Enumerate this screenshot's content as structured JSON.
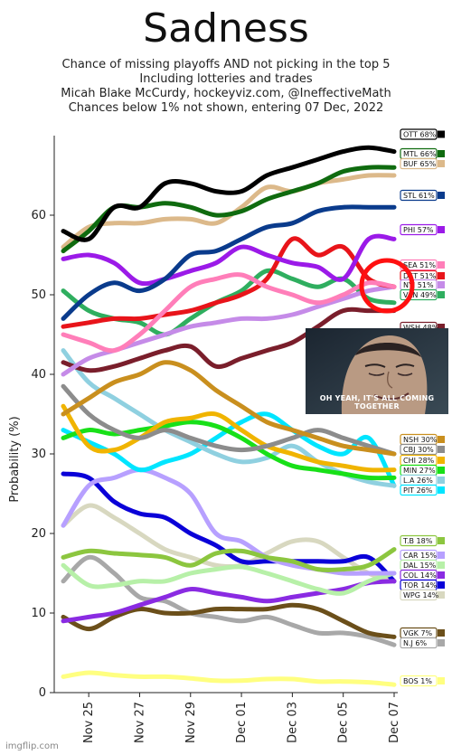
{
  "chart_data": {
    "type": "line",
    "title": "Sadness",
    "subtitle_lines": [
      "Chance of missing playoffs AND not picking in the top 5",
      "Including lotteries and trades",
      "Micah Blake McCurdy, hockeyviz.com, @IneffectiveMath",
      "Chances below 1% not shown, entering 07 Dec, 2022"
    ],
    "ylabel": "Probability (%)",
    "xlabel": "",
    "ylim": [
      0,
      70
    ],
    "yticks": [
      0,
      10,
      20,
      30,
      40,
      50,
      60
    ],
    "xticks": [
      "Nov 25",
      "Nov 27",
      "Nov 29",
      "Dec 01",
      "Dec 03",
      "Dec 05",
      "Dec 07"
    ],
    "grid": false,
    "series": [
      {
        "name": "OTT",
        "label": "OTT 68%",
        "color": "#000000",
        "values": [
          58,
          57,
          61,
          61,
          64,
          64,
          63,
          63,
          65,
          66,
          67,
          68,
          68.5,
          68
        ]
      },
      {
        "name": "MTL",
        "label": "MTL 66%",
        "color": "#0f6b0f",
        "values": [
          55.5,
          58,
          61,
          61,
          61.5,
          61,
          60,
          60.5,
          62,
          63,
          64,
          65.5,
          66,
          66
        ]
      },
      {
        "name": "BUF",
        "label": "BUF 65%",
        "color": "#dcb98a",
        "values": [
          56,
          58.5,
          59,
          59,
          59.5,
          59.5,
          59,
          61,
          63.5,
          63,
          64,
          64.5,
          65,
          65
        ]
      },
      {
        "name": "STL",
        "label": "STL 61%",
        "color": "#0a3b8c",
        "values": [
          47,
          50,
          51.5,
          50.5,
          52,
          55,
          55.5,
          57,
          58.5,
          59,
          60.5,
          61,
          61,
          61
        ]
      },
      {
        "name": "PHI",
        "label": "PHI 57%",
        "color": "#9b1ae8",
        "values": [
          54.5,
          55,
          54,
          51.5,
          52,
          53,
          54,
          56,
          55,
          54,
          53.5,
          52,
          57,
          57
        ]
      },
      {
        "name": "SEA",
        "label": "SEA 51%",
        "color": "#ff7eb9",
        "values": [
          45,
          44,
          43,
          45,
          48,
          51,
          52,
          52.5,
          51,
          50,
          49,
          50,
          51.5,
          51
        ]
      },
      {
        "name": "DET",
        "label": "DET 51%",
        "color": "#e8141a",
        "values": [
          46,
          46.5,
          47,
          47,
          47.5,
          48,
          49,
          50,
          52,
          57,
          55,
          56,
          52,
          51
        ]
      },
      {
        "name": "NYI",
        "label": "NYI 51%",
        "color": "#c58be8",
        "values": [
          40,
          42,
          43,
          44,
          45,
          46,
          46.5,
          47,
          47,
          47.5,
          48.5,
          49.5,
          50.5,
          51
        ]
      },
      {
        "name": "VAN",
        "label": "VAN 49%",
        "color": "#2fae5f",
        "values": [
          50.5,
          48,
          47,
          46.5,
          45,
          47,
          49,
          50.5,
          53,
          52,
          51,
          52,
          49.5,
          49
        ]
      },
      {
        "name": "WSH",
        "label": "WSH 48%",
        "color": "#7a1e2b",
        "values": [
          41.5,
          40.5,
          41,
          42,
          43,
          43.5,
          41,
          42,
          43,
          44,
          46,
          48,
          48,
          48
        ]
      },
      {
        "name": "NSH",
        "label": "NSH 30%",
        "color": "#c98f1e",
        "values": [
          35,
          37,
          39,
          40,
          41.5,
          40.5,
          38,
          36,
          34,
          33,
          32,
          31,
          30.5,
          30
        ]
      },
      {
        "name": "CBJ",
        "label": "CBJ 30%",
        "color": "#8c8c8c",
        "values": [
          38.5,
          35,
          33,
          32,
          33,
          32,
          31,
          30.5,
          31,
          32,
          33,
          32,
          31,
          30
        ]
      },
      {
        "name": "CHI",
        "label": "CHI 28%",
        "color": "#f0b400",
        "values": [
          36,
          31,
          30.5,
          32,
          34,
          34.5,
          35,
          33,
          31,
          30,
          29,
          28.5,
          28,
          28
        ]
      },
      {
        "name": "MIN",
        "label": "MIN 27%",
        "color": "#18e018",
        "values": [
          32,
          33,
          32.5,
          33,
          33.5,
          34,
          33.5,
          32,
          30,
          28.5,
          28,
          27.5,
          27,
          27
        ]
      },
      {
        "name": "LA",
        "label": "L.A 26%",
        "color": "#8fd0e0",
        "values": [
          43,
          39,
          37,
          35,
          33,
          31.5,
          30,
          29,
          29.5,
          31,
          29,
          27.5,
          26.5,
          26
        ]
      },
      {
        "name": "PIT",
        "label": "PIT 26%",
        "color": "#00e5ff",
        "values": [
          33,
          31.5,
          30,
          28,
          29,
          30,
          32,
          34,
          35,
          33,
          31,
          30,
          32,
          26
        ]
      },
      {
        "name": "TB",
        "label": "T.B 18%",
        "color": "#8cc63f",
        "values": [
          17,
          17.8,
          17.5,
          17.3,
          17,
          16,
          17.5,
          17.8,
          17,
          16.5,
          15.5,
          15.5,
          16,
          18
        ]
      },
      {
        "name": "CAR",
        "label": "CAR 15%",
        "color": "#b7a0ff",
        "values": [
          21,
          26,
          27,
          28,
          27,
          25,
          20,
          19,
          17,
          16,
          15.5,
          15,
          15,
          15
        ]
      },
      {
        "name": "DAL",
        "label": "DAL 15%",
        "color": "#b7f0a8",
        "values": [
          16,
          13.5,
          13.5,
          14,
          14,
          15,
          15.5,
          15.8,
          15,
          14,
          13,
          12.5,
          14,
          15
        ]
      },
      {
        "name": "COL",
        "label": "COL 14%",
        "color": "#8a2be2",
        "values": [
          9,
          9.5,
          10,
          11,
          12,
          13,
          12.5,
          12,
          11.5,
          12,
          12.5,
          13,
          13.8,
          14
        ]
      },
      {
        "name": "TOR",
        "label": "TOR 14%",
        "color": "#0a00d8",
        "values": [
          27.5,
          27,
          24,
          22.5,
          22,
          20,
          18.5,
          16.5,
          16.5,
          16.5,
          16.5,
          16.5,
          17,
          14
        ]
      },
      {
        "name": "WPG",
        "label": "WPG 14%",
        "color": "#d8d8c0",
        "values": [
          21,
          23.5,
          22,
          20,
          18,
          17,
          16,
          16,
          17.5,
          19,
          19,
          17,
          15,
          14
        ]
      },
      {
        "name": "VGK",
        "label": "VGK 7%",
        "color": "#6b4f1a",
        "values": [
          9.5,
          8,
          9.5,
          10.5,
          10,
          10,
          10.5,
          10.5,
          10.5,
          11,
          10.5,
          9,
          7.5,
          7
        ]
      },
      {
        "name": "NJ",
        "label": "N.J 6%",
        "color": "#a8a8a8",
        "values": [
          14,
          17,
          15,
          12,
          11.5,
          10,
          9.5,
          9,
          9.5,
          8.5,
          7.5,
          7.5,
          7,
          6
        ]
      },
      {
        "name": "BOS",
        "label": "BOS 1%",
        "color": "#ffff80",
        "values": [
          2,
          2.5,
          2.2,
          2,
          2,
          1.8,
          1.5,
          1.5,
          1.7,
          1.7,
          1.4,
          1.4,
          1.3,
          1
        ]
      }
    ]
  },
  "meme": {
    "caption": "OH YEAH, IT'S ALL COMING TOGETHER"
  },
  "watermark": "imgflip.com"
}
